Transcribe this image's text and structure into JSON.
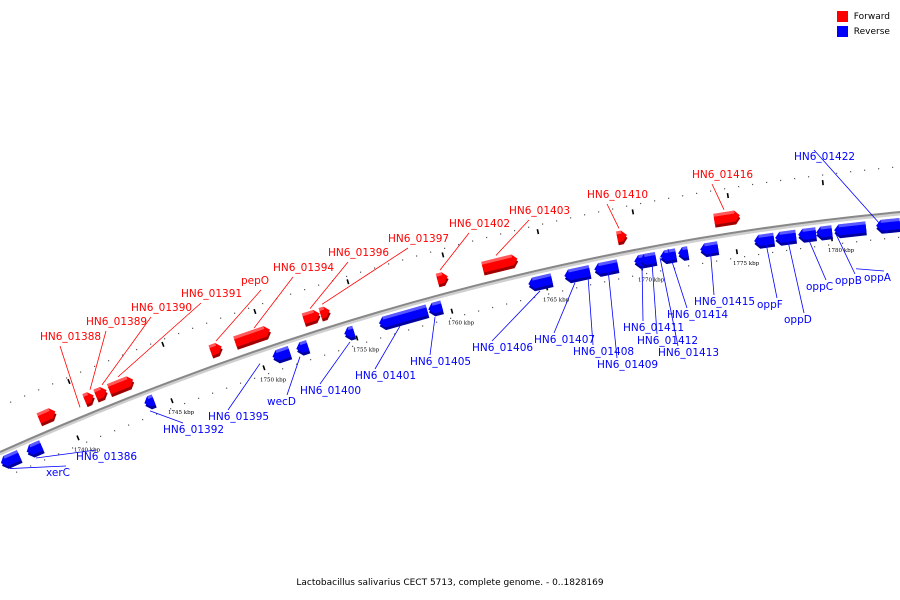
{
  "caption": "Lactobacillus salivarius CECT 5713, complete genome. - 0..1828169",
  "legend": [
    {
      "label": "Forward",
      "color": "#ff0000"
    },
    {
      "label": "Reverse",
      "color": "#0000ff"
    }
  ],
  "colors": {
    "forward": "#ff0000",
    "reverse": "#0000ff",
    "backbone": "#888888"
  },
  "scale_labels": [
    "1740 kbp",
    "1745 kbp",
    "1750 kbp",
    "1755 kbp",
    "1760 kbp",
    "1765 kbp",
    "1770 kbp",
    "1775 kbp",
    "1780 kbp"
  ],
  "genes": [
    {
      "name": "xerC",
      "strand": "reverse"
    },
    {
      "name": "HN6_01386",
      "strand": "reverse"
    },
    {
      "name": "HN6_01388",
      "strand": "forward"
    },
    {
      "name": "HN6_01389",
      "strand": "forward"
    },
    {
      "name": "HN6_01390",
      "strand": "forward"
    },
    {
      "name": "HN6_01391",
      "strand": "forward"
    },
    {
      "name": "HN6_01392",
      "strand": "reverse"
    },
    {
      "name": "pepO",
      "strand": "forward"
    },
    {
      "name": "HN6_01394",
      "strand": "forward"
    },
    {
      "name": "HN6_01395",
      "strand": "reverse"
    },
    {
      "name": "wecD",
      "strand": "reverse"
    },
    {
      "name": "HN6_01396",
      "strand": "forward"
    },
    {
      "name": "HN6_01397",
      "strand": "forward"
    },
    {
      "name": "HN6_01400",
      "strand": "reverse"
    },
    {
      "name": "HN6_01401",
      "strand": "reverse"
    },
    {
      "name": "HN6_01402",
      "strand": "forward"
    },
    {
      "name": "HN6_01405",
      "strand": "reverse"
    },
    {
      "name": "HN6_01403",
      "strand": "forward"
    },
    {
      "name": "HN6_01406",
      "strand": "reverse"
    },
    {
      "name": "HN6_01407",
      "strand": "reverse"
    },
    {
      "name": "HN6_01408",
      "strand": "reverse"
    },
    {
      "name": "HN6_01409",
      "strand": "reverse"
    },
    {
      "name": "HN6_01410",
      "strand": "forward"
    },
    {
      "name": "HN6_01411",
      "strand": "reverse"
    },
    {
      "name": "HN6_01412",
      "strand": "reverse"
    },
    {
      "name": "HN6_01413",
      "strand": "reverse"
    },
    {
      "name": "HN6_01414",
      "strand": "reverse"
    },
    {
      "name": "HN6_01415",
      "strand": "reverse"
    },
    {
      "name": "HN6_01416",
      "strand": "forward"
    },
    {
      "name": "oppF",
      "strand": "reverse"
    },
    {
      "name": "oppD",
      "strand": "reverse"
    },
    {
      "name": "oppC",
      "strand": "reverse"
    },
    {
      "name": "oppB",
      "strand": "reverse"
    },
    {
      "name": "oppA",
      "strand": "reverse"
    },
    {
      "name": "HN6_01422",
      "strand": "reverse"
    }
  ]
}
